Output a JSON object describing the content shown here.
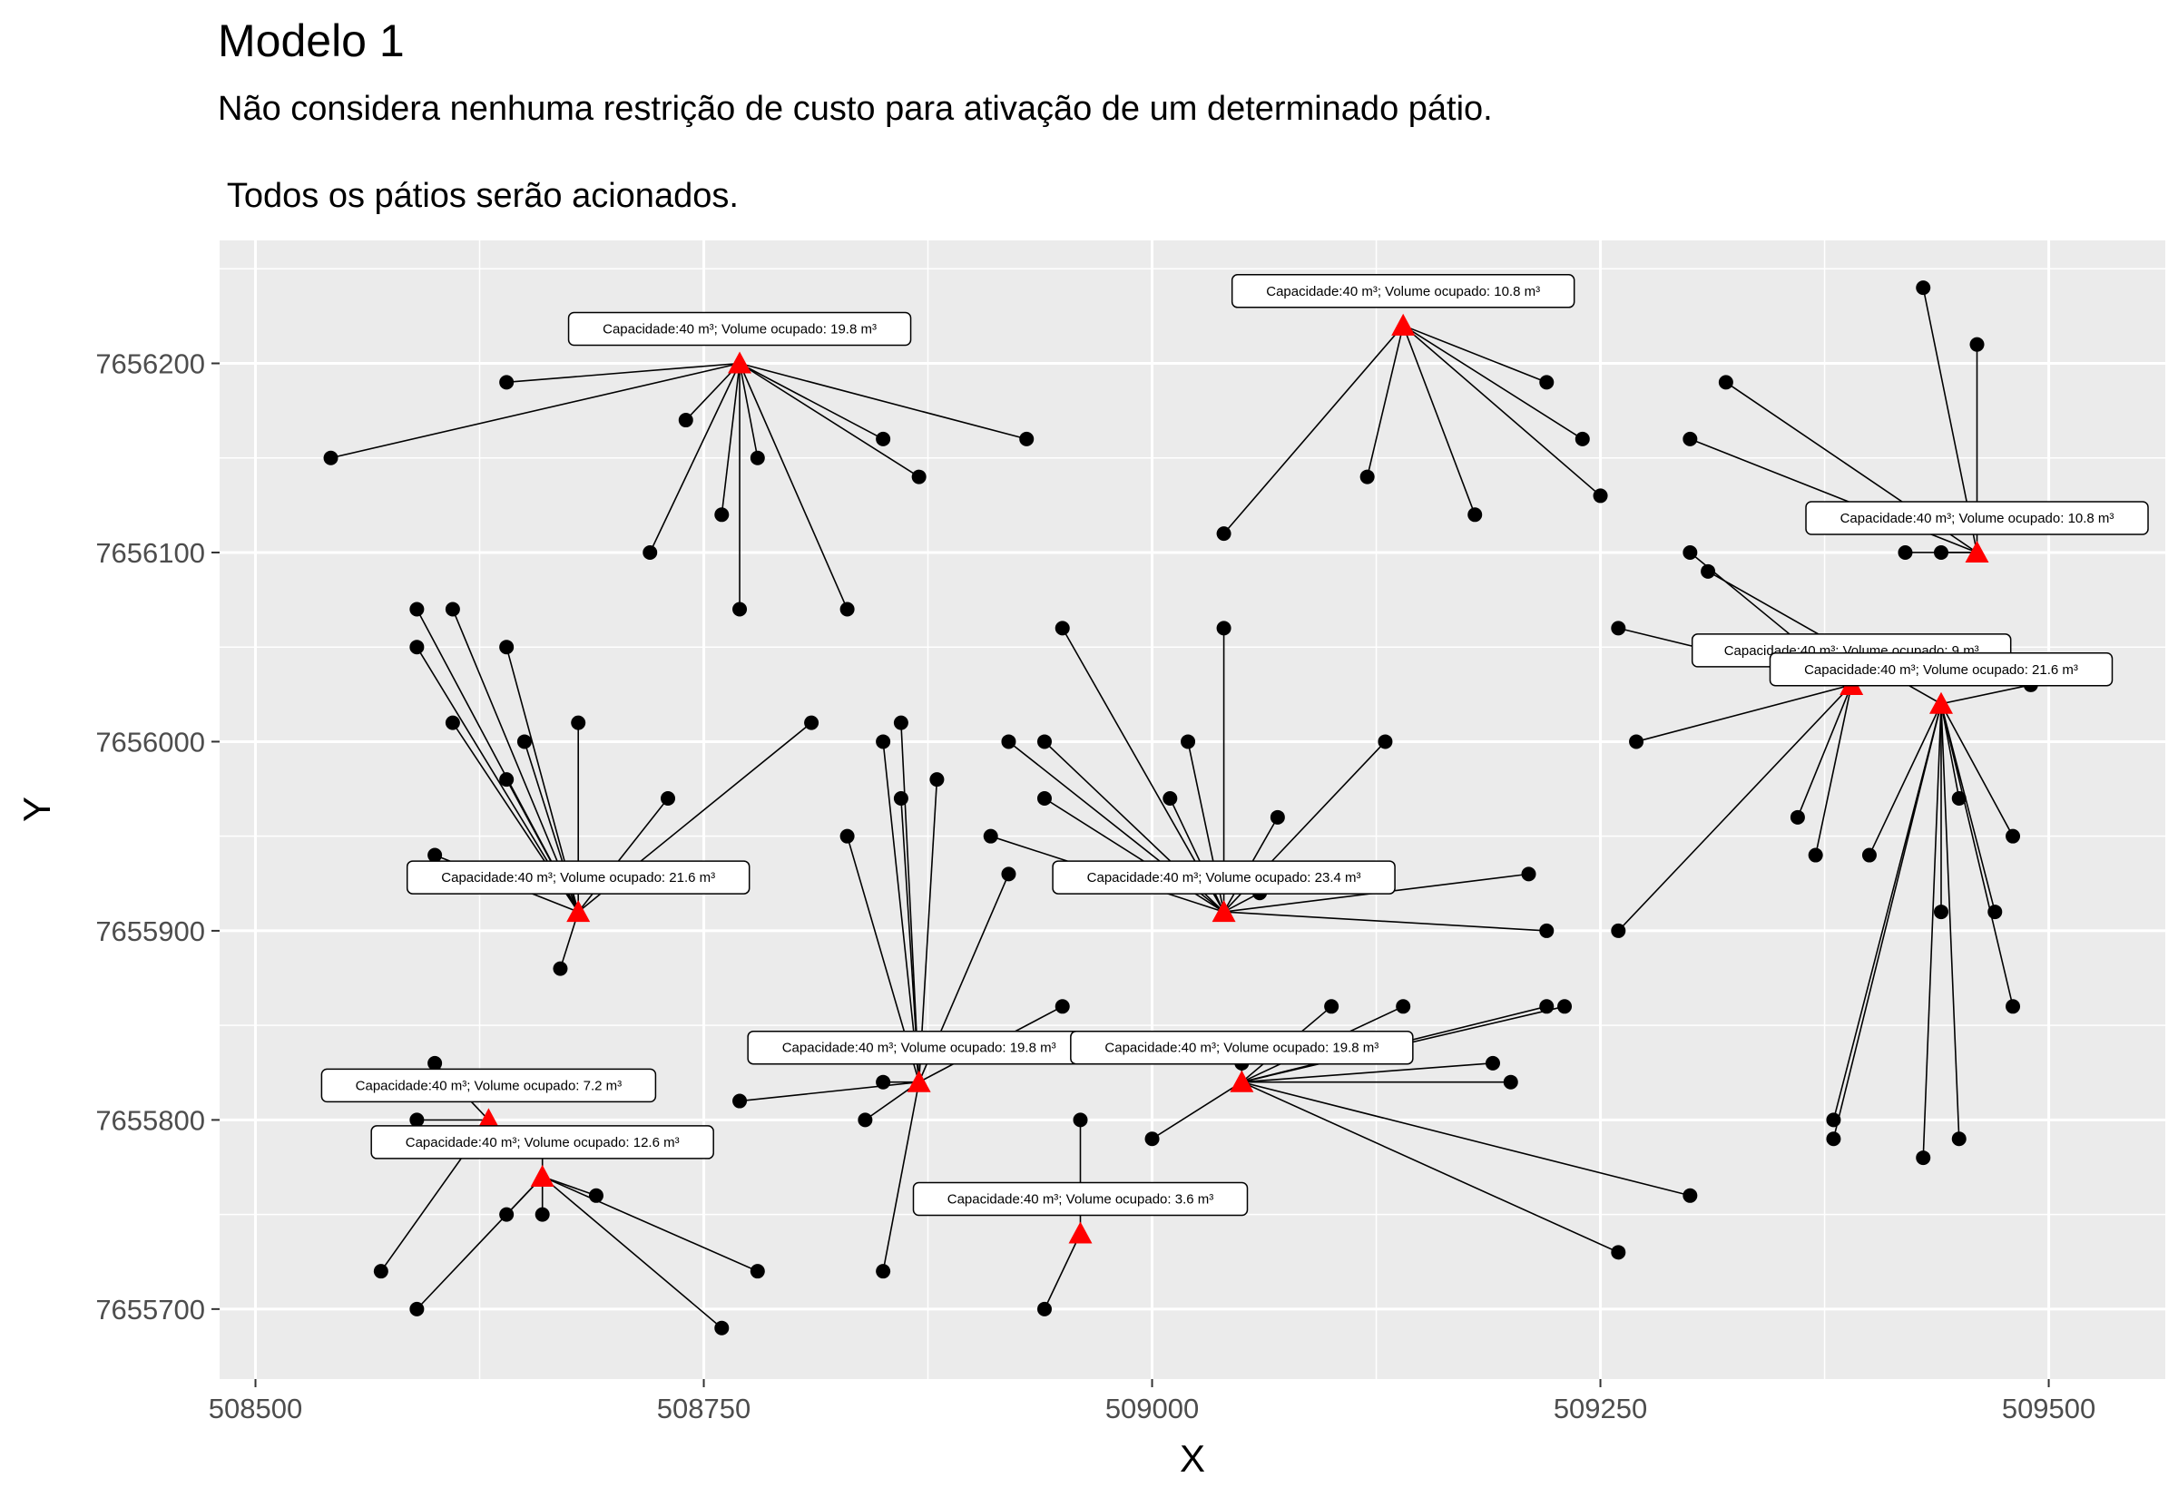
{
  "chart_data": {
    "type": "scatter",
    "title": "Modelo 1",
    "subtitle_line1": "Não considera nenhuma restrição de custo para ativação de um determinado pátio.",
    "subtitle_line2": " Todos os pátios serão acionados.",
    "xlabel": "X",
    "ylabel": "Y",
    "xlim": [
      508480,
      509565
    ],
    "ylim": [
      7655663,
      7656265
    ],
    "xticks": [
      508500,
      508750,
      509000,
      509250,
      509500
    ],
    "yticks": [
      7655700,
      7655800,
      7655900,
      7656000,
      7656100,
      7656200
    ],
    "xtick_labels": [
      "508500",
      "508750",
      "509000",
      "509250",
      "509500"
    ],
    "ytick_labels": [
      "7655700",
      "7655800",
      "7655900",
      "7656000",
      "7656100",
      "7656200"
    ],
    "grid": true,
    "colors": {
      "panel": "#ebebeb",
      "grid": "#ffffff",
      "point": "#000000",
      "yard": "#ff0000",
      "line": "#000000"
    },
    "yards": [
      {
        "x": 508770,
        "y": 7656200,
        "label": "Capacidade:40 m³; Volume ocupado: 19.8 m³",
        "points": [
          [
            508542,
            7656150
          ],
          [
            508640,
            7656190
          ],
          [
            508740,
            7656170
          ],
          [
            508720,
            7656100
          ],
          [
            508760,
            7656120
          ],
          [
            508770,
            7656070
          ],
          [
            508780,
            7656150
          ],
          [
            508850,
            7656160
          ],
          [
            508870,
            7656140
          ],
          [
            508830,
            7656070
          ],
          [
            508930,
            7656160
          ]
        ]
      },
      {
        "x": 509140,
        "y": 7656220,
        "label": "Capacidade:40 m³; Volume ocupado: 10.8 m³",
        "points": [
          [
            509040,
            7656110
          ],
          [
            509120,
            7656140
          ],
          [
            509180,
            7656120
          ],
          [
            509220,
            7656190
          ],
          [
            509240,
            7656160
          ],
          [
            509250,
            7656130
          ]
        ]
      },
      {
        "x": 509460,
        "y": 7656100,
        "label": "Capacidade:40 m³; Volume ocupado: 10.8 m³",
        "points": [
          [
            509320,
            7656190
          ],
          [
            509430,
            7656240
          ],
          [
            509460,
            7656210
          ],
          [
            509420,
            7656100
          ],
          [
            509440,
            7656100
          ],
          [
            509300,
            7656160
          ]
        ]
      },
      {
        "x": 509390,
        "y": 7656030,
        "label": "Capacidade:40 m³; Volume ocupado: 9 m³",
        "points": [
          [
            509260,
            7656060
          ],
          [
            509270,
            7656000
          ],
          [
            509260,
            7655900
          ],
          [
            509360,
            7655960
          ],
          [
            509370,
            7655940
          ],
          [
            509300,
            7656100
          ]
        ]
      },
      {
        "x": 509440,
        "y": 7656020,
        "label": "Capacidade:40 m³; Volume ocupado: 21.6 m³",
        "points": [
          [
            509490,
            7656030
          ],
          [
            509480,
            7655950
          ],
          [
            509450,
            7655970
          ],
          [
            509400,
            7655940
          ],
          [
            509440,
            7655910
          ],
          [
            509470,
            7655910
          ],
          [
            509480,
            7655860
          ],
          [
            509380,
            7655800
          ],
          [
            509380,
            7655790
          ],
          [
            509430,
            7655780
          ],
          [
            509450,
            7655790
          ],
          [
            509310,
            7656090
          ]
        ]
      },
      {
        "x": 508680,
        "y": 7655910,
        "label": "Capacidade:40 m³; Volume ocupado: 21.6 m³",
        "points": [
          [
            508590,
            7656070
          ],
          [
            508610,
            7656070
          ],
          [
            508590,
            7656050
          ],
          [
            508640,
            7656050
          ],
          [
            508610,
            7656010
          ],
          [
            508650,
            7656000
          ],
          [
            508640,
            7655980
          ],
          [
            508680,
            7656010
          ],
          [
            508730,
            7655970
          ],
          [
            508810,
            7656010
          ],
          [
            508600,
            7655940
          ],
          [
            508670,
            7655880
          ]
        ]
      },
      {
        "x": 509040,
        "y": 7655910,
        "label": "Capacidade:40 m³; Volume ocupado: 23.4 m³",
        "points": [
          [
            508950,
            7656060
          ],
          [
            508920,
            7656000
          ],
          [
            508940,
            7656000
          ],
          [
            508940,
            7655970
          ],
          [
            508910,
            7655950
          ],
          [
            509010,
            7655970
          ],
          [
            509020,
            7656000
          ],
          [
            509040,
            7656060
          ],
          [
            509070,
            7655960
          ],
          [
            509130,
            7656000
          ],
          [
            509060,
            7655920
          ],
          [
            509210,
            7655930
          ],
          [
            509220,
            7655900
          ]
        ]
      },
      {
        "x": 508870,
        "y": 7655820,
        "label": "Capacidade:40 m³; Volume ocupado: 19.8 m³",
        "points": [
          [
            508850,
            7656000
          ],
          [
            508860,
            7656010
          ],
          [
            508860,
            7655970
          ],
          [
            508880,
            7655980
          ],
          [
            508830,
            7655950
          ],
          [
            508920,
            7655930
          ],
          [
            508950,
            7655860
          ],
          [
            508850,
            7655820
          ],
          [
            508770,
            7655810
          ],
          [
            508840,
            7655800
          ],
          [
            508850,
            7655720
          ]
        ]
      },
      {
        "x": 509050,
        "y": 7655820,
        "label": "Capacidade:40 m³; Volume ocupado: 19.8 m³",
        "points": [
          [
            509100,
            7655860
          ],
          [
            509140,
            7655860
          ],
          [
            509220,
            7655860
          ],
          [
            509230,
            7655860
          ],
          [
            509190,
            7655830
          ],
          [
            509200,
            7655820
          ],
          [
            509050,
            7655830
          ],
          [
            509000,
            7655790
          ],
          [
            509300,
            7655760
          ],
          [
            509260,
            7655730
          ]
        ]
      },
      {
        "x": 508630,
        "y": 7655800,
        "label": "Capacidade:40 m³; Volume ocupado: 7.2 m³",
        "points": [
          [
            508590,
            7655800
          ],
          [
            508600,
            7655830
          ],
          [
            508570,
            7655720
          ]
        ]
      },
      {
        "x": 508660,
        "y": 7655770,
        "label": "Capacidade:40 m³; Volume ocupado: 12.6 m³",
        "points": [
          [
            508660,
            7655790
          ],
          [
            508640,
            7655750
          ],
          [
            508660,
            7655750
          ],
          [
            508690,
            7655760
          ],
          [
            508590,
            7655700
          ],
          [
            508780,
            7655720
          ],
          [
            508760,
            7655690
          ]
        ]
      },
      {
        "x": 508960,
        "y": 7655740,
        "label": "Capacidade:40 m³; Volume ocupado: 3.6 m³",
        "points": [
          [
            508960,
            7655800
          ],
          [
            508940,
            7655700
          ]
        ]
      }
    ]
  }
}
